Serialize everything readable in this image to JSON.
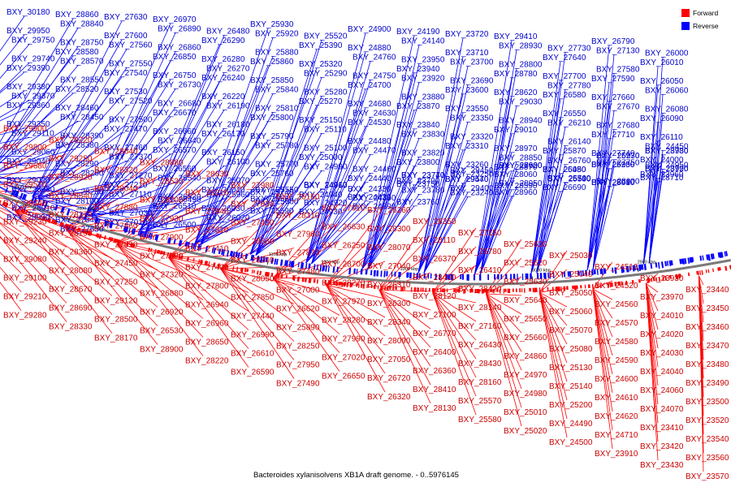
{
  "title": "Bacteroides xylanisolvens XB1A draft genome. - 0..5976145",
  "legend": [
    {
      "label": "Forward",
      "color": "#ff0000"
    },
    {
      "label": "Reverse",
      "color": "#0000ff"
    }
  ],
  "colors": {
    "forward": "#ff0000",
    "reverse": "#0000ff",
    "backbone": "#808080",
    "text_forward": "#cc0000",
    "text_reverse": "#0000cc"
  },
  "ticks": [
    "3700 kbp",
    "3600 kbp",
    "3500 kbp",
    "3400 kbp",
    "1100 kbp",
    "1200 kbp",
    "1000 kbp",
    "3000 kbp",
    "2900 kbp"
  ],
  "reverse_labels": [
    "BXY_30180",
    "BXY_29950",
    "BXY_29750",
    "BXY_29740",
    "BXY_29390",
    "BXY_29380",
    "BXY_29370",
    "BXY_29360",
    "BXY_29350",
    "BXY_29110",
    "BXY_29060",
    "BXY_29040",
    "BXY_29020",
    "BXY_28990",
    "BXY_28910",
    "BXY_28890",
    "BXY_28860",
    "BXY_28840",
    "BXY_28750",
    "BXY_28580",
    "BXY_28570",
    "BXY_28550",
    "BXY_28520",
    "BXY_28460",
    "BXY_28450",
    "BXY_28390",
    "BXY_28380",
    "BXY_28290",
    "BXY_28260",
    "BXY_28230",
    "BXY_28100",
    "BXY_27840",
    "BXY_27650",
    "BXY_27630",
    "BXY_27600",
    "BXY_27560",
    "BXY_27550",
    "BXY_27540",
    "BXY_27530",
    "BXY_27520",
    "BXY_27500",
    "BXY_27470",
    "BXY_27460",
    "BXY_27370",
    "BXY_27270",
    "BXY_27210",
    "BXY_27110",
    "BXY_27030",
    "BXY_27010",
    "BXY_26970",
    "BXY_26890",
    "BXY_26860",
    "BXY_26850",
    "BXY_26750",
    "BXY_26730",
    "BXY_26680",
    "BXY_26670",
    "BXY_26660",
    "BXY_26640",
    "BXY_26570",
    "BXY_26560",
    "BXY_26540",
    "BXY_26520",
    "BXY_26510",
    "BXY_26500",
    "BXY_26490",
    "BXY_26480",
    "BXY_26290",
    "BXY_26280",
    "BXY_26270",
    "BXY_26240",
    "BXY_26220",
    "BXY_26190",
    "BXY_26180",
    "BXY_26170",
    "BXY_26150",
    "BXY_26100",
    "BXY_26070",
    "BXY_26040",
    "BXY_26030",
    "BXY_26020",
    "BXY_25960",
    "BXY_25930",
    "BXY_25920",
    "BXY_25880",
    "BXY_25860",
    "BXY_25850",
    "BXY_25840",
    "BXY_25810",
    "BXY_25800",
    "BXY_25790",
    "BXY_25780",
    "BXY_25770",
    "BXY_25760",
    "BXY_25740",
    "BXY_25600",
    "BXY_25590",
    "BXY_25560",
    "BXY_25550",
    "BXY_25520",
    "BXY_25390",
    "BXY_25320",
    "BXY_25290",
    "BXY_25280",
    "BXY_25270",
    "BXY_25150",
    "BXY_25110",
    "BXY_25100",
    "BXY_25000",
    "BXY_24990",
    "BXY_24960",
    "BXY_24940",
    "BXY_24930",
    "BXY_24920",
    "BXY_24910",
    "BXY_24900",
    "BXY_24880",
    "BXY_24760",
    "BXY_24750",
    "BXY_24700",
    "BXY_24680",
    "BXY_24630",
    "BXY_24530",
    "BXY_24480",
    "BXY_24470",
    "BXY_24460",
    "BXY_24440",
    "BXY_24430",
    "BXY_24390",
    "BXY_24360",
    "BXY_24330",
    "BXY_24190",
    "BXY_24140",
    "BXY_23950",
    "BXY_23940",
    "BXY_23920",
    "BXY_23880",
    "BXY_23870",
    "BXY_23840",
    "BXY_23830",
    "BXY_23820",
    "BXY_23800",
    "BXY_23790",
    "BXY_23780",
    "BXY_23770",
    "BXY_23760",
    "BXY_23750",
    "BXY_23740",
    "BXY_23720",
    "BXY_23710",
    "BXY_23700",
    "BXY_23690",
    "BXY_23600",
    "BXY_23550",
    "BXY_23350",
    "BXY_23320",
    "BXY_23310",
    "BXY_23260",
    "BXY_23250",
    "BXY_23240",
    "BXY_29540",
    "BXY_29450",
    "BXY_29400",
    "BXY_29470",
    "BXY_29410",
    "BXY_28930",
    "BXY_28800",
    "BXY_28780",
    "BXY_28620",
    "BXY_29030",
    "BXY_28940",
    "BXY_29010",
    "BXY_28970",
    "BXY_28850",
    "BXY_28870",
    "BXY_28590",
    "BXY_28950",
    "BXY_28600",
    "BXY_28960",
    "BXY_28060",
    "BXY_27920",
    "BXY_27730",
    "BXY_27640",
    "BXY_27700",
    "BXY_27780",
    "BXY_26580",
    "BXY_26550",
    "BXY_26210",
    "BXY_26140",
    "BXY_25870",
    "BXY_25450",
    "BXY_25530",
    "BXY_25540",
    "BXY_26980",
    "BXY_26690",
    "BXY_26700",
    "BXY_26760",
    "BXY_26790",
    "BXY_27130",
    "BXY_27580",
    "BXY_27590",
    "BXY_27660",
    "BXY_27670",
    "BXY_27680",
    "BXY_27710",
    "BXY_27740",
    "BXY_27750",
    "BXY_28000",
    "BXY_28010",
    "BXY_26200",
    "BXY_26230",
    "BXY_25940",
    "BXY_25950",
    "BXY_25970",
    "BXY_26000",
    "BXY_26010",
    "BXY_26050",
    "BXY_26060",
    "BXY_26080",
    "BXY_26090",
    "BXY_26110",
    "BXY_24450",
    "BXY_24950",
    "BXY_23960",
    "BXY_23980",
    "BXY_23990",
    "BXY_24000",
    "BXY_28710",
    "BXY_28720",
    "BXY_28730"
  ],
  "forward_labels": [
    "BXY_29900",
    "BXY_29800",
    "BXY_29680",
    "BXY_29570",
    "BXY_29340",
    "BXY_29230",
    "BXY_29240",
    "BXY_29080",
    "BXY_29100",
    "BXY_29210",
    "BXY_29280",
    "BXY_29220",
    "BXY_29250",
    "BXY_28920",
    "BXY_28540",
    "BXY_28370",
    "BXY_28190",
    "BXY_28360",
    "BXY_28080",
    "BXY_28670",
    "BXY_28690",
    "BXY_28330",
    "BXY_28640",
    "BXY_28320",
    "BXY_28040",
    "BXY_27880",
    "BXY_27860",
    "BXY_27890",
    "BXY_27450",
    "BXY_27250",
    "BXY_29120",
    "BXY_28500",
    "BXY_28170",
    "BXY_28880",
    "BXY_28530",
    "BXY_28200",
    "BXY_27930",
    "BXY_27900",
    "BXY_27390",
    "BXY_27320",
    "BXY_26880",
    "BXY_26920",
    "BXY_26530",
    "BXY_28900",
    "BXY_28630",
    "BXY_28210",
    "BXY_27940",
    "BXY_27810",
    "BXY_27410",
    "BXY_27400",
    "BXY_27800",
    "BXY_26940",
    "BXY_26960",
    "BXY_28650",
    "BXY_28220",
    "BXY_27980",
    "BXY_27830",
    "BXY_27430",
    "BXY_28680",
    "BXY_28240",
    "BXY_28050",
    "BXY_27850",
    "BXY_27440",
    "BXY_26990",
    "BXY_26610",
    "BXY_26590",
    "BXY_26160",
    "BXY_28310",
    "BXY_27960",
    "BXY_27870",
    "BXY_27480",
    "BXY_27000",
    "BXY_26620",
    "BXY_25890",
    "BXY_28250",
    "BXY_27950",
    "BXY_27490",
    "BXY_27010",
    "BXY_26630",
    "BXY_26250",
    "BXY_28700",
    "BXY_28270",
    "BXY_27970",
    "BXY_28280",
    "BXY_27990",
    "BXY_27020",
    "BXY_26650",
    "BXY_26260",
    "BXY_28300",
    "BXY_28070",
    "BXY_27040",
    "BXY_26310",
    "BXY_26300",
    "BXY_28340",
    "BXY_28090",
    "BXY_27050",
    "BXY_26720",
    "BXY_26320",
    "BXY_28350",
    "BXY_28110",
    "BXY_26370",
    "BXY_28400",
    "BXY_28120",
    "BXY_27100",
    "BXY_26770",
    "BXY_26400",
    "BXY_26360",
    "BXY_28410",
    "BXY_28130",
    "BXY_27150",
    "BXY_26780",
    "BXY_26410",
    "BXY_28420",
    "BXY_28140",
    "BXY_27160",
    "BXY_26430",
    "BXY_28430",
    "BXY_28160",
    "BXY_25570",
    "BXY_25580",
    "BXY_25610",
    "BXY_25620",
    "BXY_25630",
    "BXY_25640",
    "BXY_25650",
    "BXY_25660",
    "BXY_24860",
    "BXY_24970",
    "BXY_24980",
    "BXY_25010",
    "BXY_25020",
    "BXY_25030",
    "BXY_25040",
    "BXY_25050",
    "BXY_25060",
    "BXY_25070",
    "BXY_25080",
    "BXY_25130",
    "BXY_25140",
    "BXY_25200",
    "BXY_24490",
    "BXY_24500",
    "BXY_24510",
    "BXY_24520",
    "BXY_24560",
    "BXY_24570",
    "BXY_24580",
    "BXY_24590",
    "BXY_24600",
    "BXY_24610",
    "BXY_24620",
    "BXY_24710",
    "BXY_23910",
    "BXY_23930",
    "BXY_23970",
    "BXY_24010",
    "BXY_24020",
    "BXY_24030",
    "BXY_24040",
    "BXY_24060",
    "BXY_24070",
    "BXY_23410",
    "BXY_23420",
    "BXY_23430",
    "BXY_23440",
    "BXY_23450",
    "BXY_23460",
    "BXY_23470",
    "BXY_23480",
    "BXY_23490",
    "BXY_23500",
    "BXY_23520",
    "BXY_23540",
    "BXY_23560",
    "BXY_23570"
  ]
}
